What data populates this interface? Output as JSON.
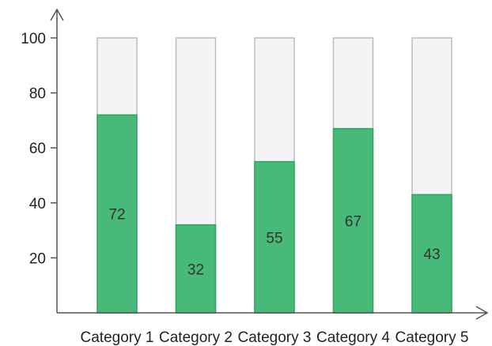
{
  "chart_data": {
    "type": "bar",
    "categories": [
      "Category 1",
      "Category 2",
      "Category 3",
      "Category 4",
      "Category 5"
    ],
    "values": [
      72,
      32,
      55,
      67,
      43
    ],
    "ylim": [
      0,
      100
    ],
    "yticks": [
      20,
      40,
      60,
      80,
      100
    ],
    "title": "",
    "xlabel": "",
    "ylabel": "",
    "grid": false,
    "colors": {
      "bar_fill": "#47b978",
      "bar_stroke": "#2fa75f",
      "background_bar_fill": "#f4f4f4",
      "background_bar_stroke": "#bdbdbd",
      "axis": "#555555"
    }
  }
}
